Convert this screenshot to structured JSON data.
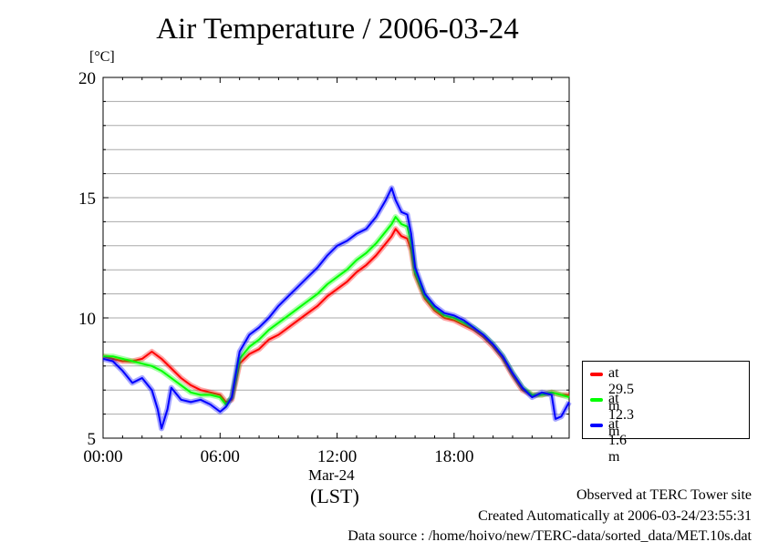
{
  "chart_data": {
    "type": "line",
    "title": "Air Temperature / 2006-03-24",
    "ylabel": "[°C]",
    "xlabel": "(LST)",
    "date_label": "Mar-24",
    "ylim": [
      5,
      20
    ],
    "xlim": [
      0,
      23.9
    ],
    "yticks": [
      5,
      10,
      15,
      20
    ],
    "xticks": [
      {
        "value": 0,
        "label": "00:00"
      },
      {
        "value": 6,
        "label": "06:00"
      },
      {
        "value": 12,
        "label": "12:00"
      },
      {
        "value": 18,
        "label": "18:00"
      }
    ],
    "grid": true,
    "legend_position": "bottom-right, outside plot",
    "series": [
      {
        "name": "at 29.5 m",
        "color": "#ff0000",
        "x": [
          0,
          0.5,
          1,
          1.5,
          2,
          2.5,
          3,
          3.5,
          4,
          4.5,
          5,
          5.5,
          6,
          6.3,
          6.6,
          7,
          7.5,
          8,
          8.5,
          9,
          9.5,
          10,
          10.5,
          11,
          11.5,
          12,
          12.5,
          13,
          13.5,
          14,
          14.5,
          14.8,
          15,
          15.3,
          15.6,
          15.8,
          16,
          16.5,
          17,
          17.5,
          18,
          18.5,
          19,
          19.5,
          20,
          20.5,
          21,
          21.5,
          22,
          22.5,
          23,
          23.5,
          23.9
        ],
        "y": [
          8.4,
          8.3,
          8.2,
          8.2,
          8.3,
          8.6,
          8.3,
          7.9,
          7.5,
          7.2,
          7.0,
          6.9,
          6.8,
          6.5,
          6.6,
          8.1,
          8.5,
          8.7,
          9.1,
          9.3,
          9.6,
          9.9,
          10.2,
          10.5,
          10.9,
          11.2,
          11.5,
          11.9,
          12.2,
          12.6,
          13.1,
          13.4,
          13.7,
          13.4,
          13.3,
          12.8,
          11.8,
          10.8,
          10.3,
          10.0,
          9.9,
          9.7,
          9.5,
          9.2,
          8.8,
          8.3,
          7.6,
          7.0,
          6.8,
          6.8,
          6.9,
          6.8,
          6.8
        ]
      },
      {
        "name": "at 12.3 m",
        "color": "#00ff00",
        "x": [
          0,
          0.5,
          1,
          1.5,
          2,
          2.5,
          3,
          3.5,
          4,
          4.5,
          5,
          5.5,
          6,
          6.3,
          6.6,
          7,
          7.5,
          8,
          8.5,
          9,
          9.5,
          10,
          10.5,
          11,
          11.5,
          12,
          12.5,
          13,
          13.5,
          14,
          14.5,
          14.8,
          15,
          15.3,
          15.6,
          15.8,
          16,
          16.5,
          17,
          17.5,
          18,
          18.5,
          19,
          19.5,
          20,
          20.5,
          21,
          21.5,
          22,
          22.5,
          23,
          23.5,
          23.9
        ],
        "y": [
          8.4,
          8.4,
          8.3,
          8.2,
          8.1,
          8.0,
          7.8,
          7.5,
          7.2,
          6.9,
          6.8,
          6.8,
          6.7,
          6.4,
          6.7,
          8.3,
          8.8,
          9.1,
          9.5,
          9.8,
          10.1,
          10.4,
          10.7,
          11.0,
          11.4,
          11.7,
          12.0,
          12.4,
          12.7,
          13.1,
          13.6,
          13.9,
          14.2,
          13.9,
          13.8,
          13.1,
          11.9,
          10.9,
          10.4,
          10.1,
          10.0,
          9.8,
          9.6,
          9.3,
          8.9,
          8.4,
          7.7,
          7.1,
          6.8,
          6.8,
          6.9,
          6.8,
          6.7
        ]
      },
      {
        "name": "at 1.6 m",
        "color": "#0000ff",
        "x": [
          0,
          0.5,
          1,
          1.5,
          2,
          2.5,
          2.8,
          3,
          3.3,
          3.5,
          4,
          4.5,
          5,
          5.5,
          6,
          6.3,
          6.6,
          7,
          7.5,
          8,
          8.5,
          9,
          9.5,
          10,
          10.5,
          11,
          11.5,
          12,
          12.5,
          13,
          13.5,
          14,
          14.5,
          14.8,
          15,
          15.3,
          15.6,
          15.8,
          16,
          16.5,
          17,
          17.5,
          18,
          18.5,
          19,
          19.5,
          20,
          20.5,
          21,
          21.5,
          22,
          22.5,
          23,
          23.2,
          23.5,
          23.9
        ],
        "y": [
          8.3,
          8.2,
          7.8,
          7.3,
          7.5,
          7.0,
          6.2,
          5.4,
          6.2,
          7.1,
          6.6,
          6.5,
          6.6,
          6.4,
          6.1,
          6.3,
          6.7,
          8.6,
          9.3,
          9.6,
          10.0,
          10.5,
          10.9,
          11.3,
          11.7,
          12.1,
          12.6,
          13.0,
          13.2,
          13.5,
          13.7,
          14.2,
          14.9,
          15.4,
          14.9,
          14.4,
          14.3,
          13.5,
          12.1,
          11.0,
          10.5,
          10.2,
          10.1,
          9.9,
          9.6,
          9.3,
          8.9,
          8.4,
          7.7,
          7.1,
          6.7,
          6.9,
          6.8,
          5.8,
          5.9,
          6.5
        ]
      }
    ]
  },
  "footer": {
    "site": "Observed at TERC Tower site",
    "created": "Created Automatically at 2006-03-24/23:55:31",
    "source": "Data source : /home/hoivo/new/TERC-data/sorted_data/MET.10s.dat"
  }
}
